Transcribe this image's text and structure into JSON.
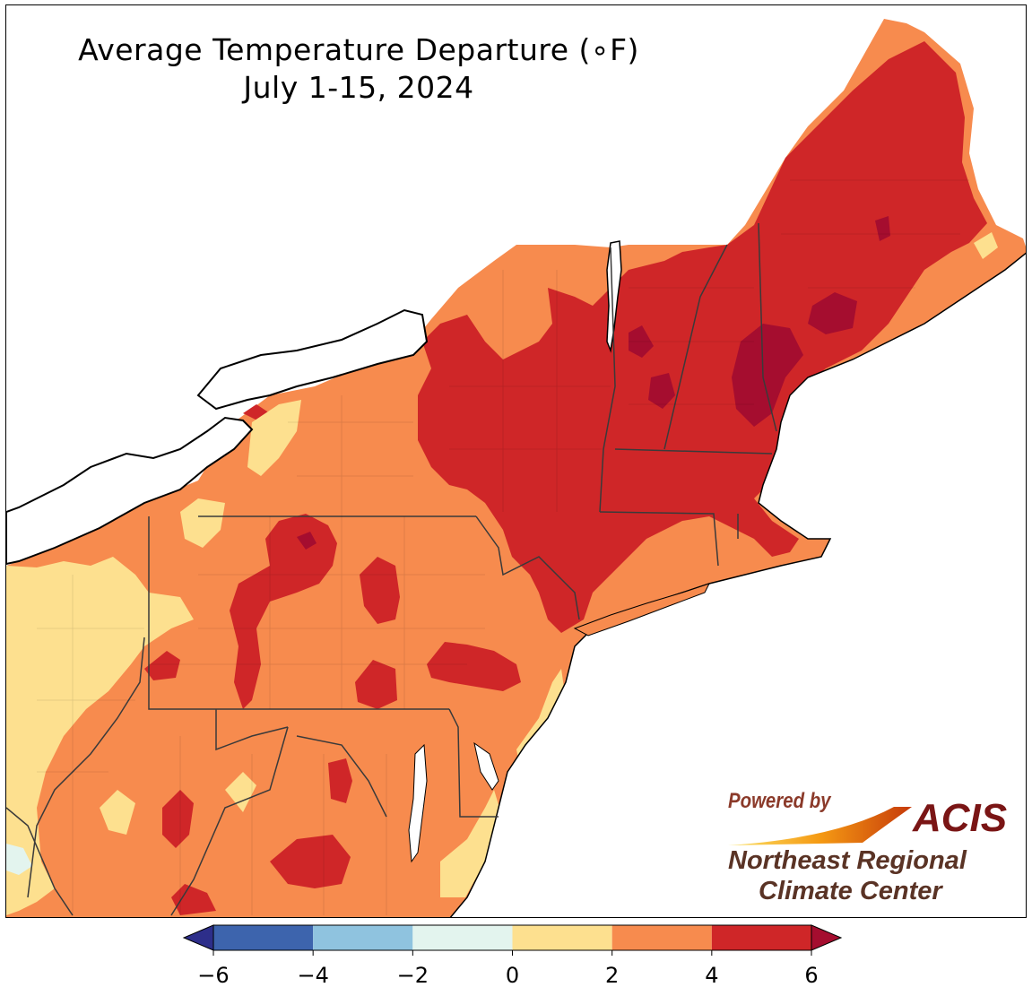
{
  "title": "Average Temperature Departure (∘F)",
  "subtitle": "July 1-15, 2024",
  "logo": {
    "powered_by": "Powered by",
    "acis": "ACIS",
    "org_line1": "Northeast Regional",
    "org_line2": "Climate Center"
  },
  "legend": {
    "bins": [
      {
        "from": -6,
        "to": -4,
        "color": "#3d64ad"
      },
      {
        "from": -4,
        "to": -2,
        "color": "#8fc3df"
      },
      {
        "from": -2,
        "to": 0,
        "color": "#e3f4ee"
      },
      {
        "from": 0,
        "to": 2,
        "color": "#fde08f"
      },
      {
        "from": 2,
        "to": 4,
        "color": "#f78b4e"
      },
      {
        "from": 4,
        "to": 6,
        "color": "#cf2628"
      }
    ],
    "under_color": "#2d2e8a",
    "over_color": "#a50d2f",
    "tick_labels": [
      "−6",
      "−4",
      "−2",
      "0",
      "2",
      "4",
      "6"
    ]
  },
  "colors": {
    "water": "#ffffff",
    "land_2_4": "#f78b4e",
    "land_4_6": "#cf2628",
    "land_0_2": "#fde08f",
    "land_over_6": "#a50d2f",
    "land_neg2_0": "#e3f4ee"
  }
}
